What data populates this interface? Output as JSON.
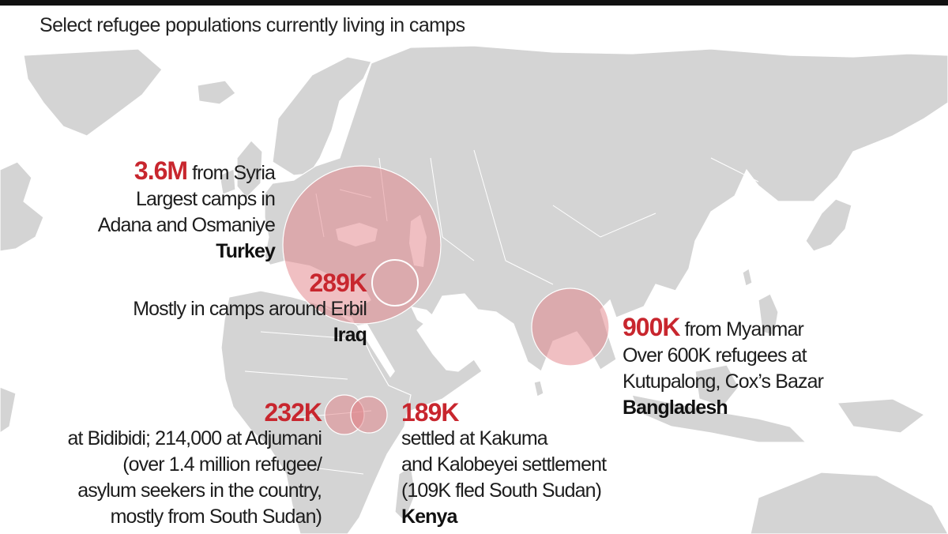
{
  "title": "Select refugee populations currently living in camps",
  "colors": {
    "land": "#d4d4d4",
    "bubble": "#e27f86",
    "highlight": "#c8262e"
  },
  "callouts": {
    "turkey": {
      "figure": "3.6M",
      "line1_rest": "from Syria",
      "line2": "Largest camps in",
      "line3": "Adana and Osmaniye",
      "country": "Turkey"
    },
    "iraq": {
      "figure": "289K",
      "line2": "Mostly in camps around Erbil",
      "country": "Iraq"
    },
    "bangladesh": {
      "figure": "900K",
      "line1_rest": "from Myanmar",
      "line2": "Over 600K refugees at",
      "line3": "Kutupalong, Cox’s Bazar",
      "country": "Bangladesh"
    },
    "uganda": {
      "figure": "232K",
      "line2": "at Bidibidi; 214,000 at Adjumani",
      "line3": "(over 1.4 million refugee/",
      "line4": "asylum seekers in the country,",
      "line5": "mostly from South Sudan)"
    },
    "kenya": {
      "figure": "189K",
      "line2": "settled at Kakuma",
      "line3": "and Kalobeyei settlement",
      "line4": "(109K fled South Sudan)",
      "country": "Kenya"
    }
  }
}
